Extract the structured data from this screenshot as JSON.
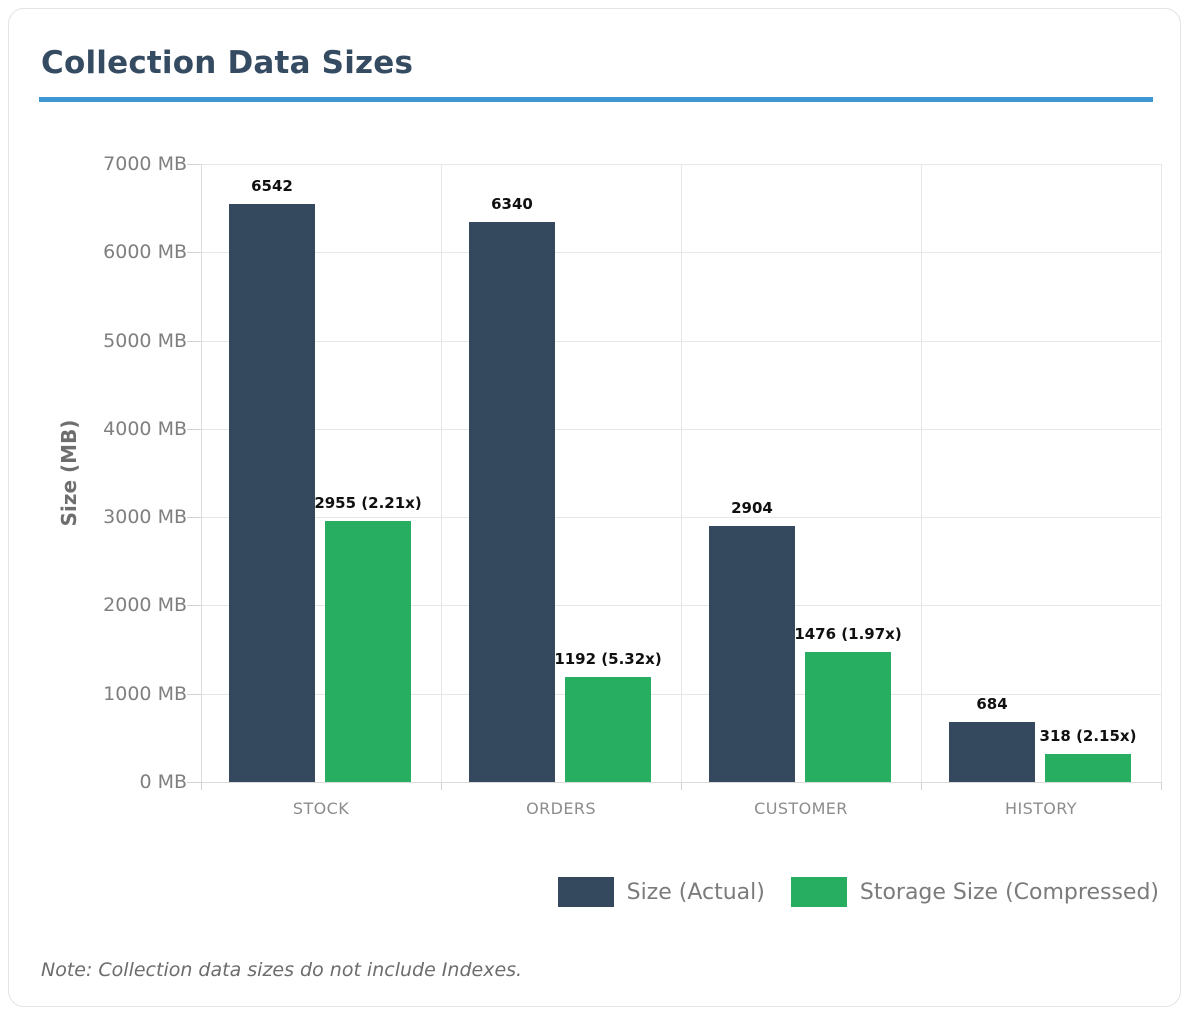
{
  "header": {
    "accent_rule_color": "#3e97d3"
  },
  "chart_data": {
    "type": "bar",
    "title": "Collection Data Sizes",
    "categories": [
      "STOCK",
      "ORDERS",
      "CUSTOMER",
      "HISTORY"
    ],
    "series": [
      {
        "name": "Size (Actual)",
        "color": "#34495e",
        "values": [
          6542,
          6340,
          2904,
          684
        ],
        "labels": [
          "6542",
          "6340",
          "2904",
          "684"
        ]
      },
      {
        "name": "Storage Size (Compressed)",
        "color": "#27ae60",
        "values": [
          2955,
          1192,
          1476,
          318
        ],
        "labels": [
          "2955 (2.21x)",
          "1192 (5.32x)",
          "1476 (1.97x)",
          "318 (2.15x)"
        ]
      }
    ],
    "ylabel": "Size (MB)",
    "ylim": [
      0,
      7000
    ],
    "ytick_step": 1000,
    "ytick_suffix": " MB",
    "grid": true,
    "legend_position": "bottom-right"
  },
  "footer": {
    "note": "Note: Collection data sizes do not include Indexes."
  }
}
